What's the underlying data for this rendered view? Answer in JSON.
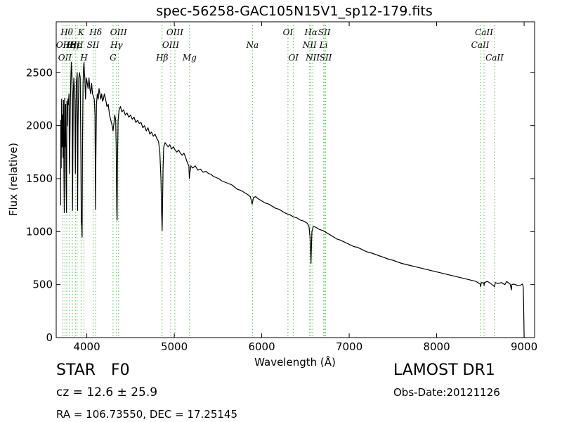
{
  "chart_data": {
    "type": "line",
    "title": "spec-56258-GAC105N15V1_sp12-179.fits",
    "xlabel": "Wavelength (Å)",
    "ylabel": "Flux (relative)",
    "xlim": [
      3650,
      9120
    ],
    "ylim": [
      0,
      2980
    ],
    "xticks": [
      4000,
      5000,
      6000,
      7000,
      8000,
      9000
    ],
    "yticks": [
      0,
      500,
      1000,
      1500,
      2000,
      2500
    ],
    "grid": false,
    "series": [
      {
        "color": "#000000",
        "points": [
          [
            3700,
            1250
          ],
          [
            3703,
            2050
          ],
          [
            3707,
            1600
          ],
          [
            3712,
            2250
          ],
          [
            3716,
            1800
          ],
          [
            3722,
            2100
          ],
          [
            3728,
            1700
          ],
          [
            3733,
            2240
          ],
          [
            3738,
            1550
          ],
          [
            3742,
            1180
          ],
          [
            3746,
            2260
          ],
          [
            3752,
            1800
          ],
          [
            3758,
            2200
          ],
          [
            3763,
            1450
          ],
          [
            3768,
            1180
          ],
          [
            3772,
            2230
          ],
          [
            3778,
            2000
          ],
          [
            3784,
            2250
          ],
          [
            3790,
            2200
          ],
          [
            3796,
            2300
          ],
          [
            3801,
            1550
          ],
          [
            3806,
            1800
          ],
          [
            3811,
            2150
          ],
          [
            3817,
            2450
          ],
          [
            3823,
            2600
          ],
          [
            3828,
            2500
          ],
          [
            3833,
            2300
          ],
          [
            3836,
            1200
          ],
          [
            3840,
            1700
          ],
          [
            3845,
            2300
          ],
          [
            3852,
            2450
          ],
          [
            3858,
            2350
          ],
          [
            3864,
            2250
          ],
          [
            3869,
            1550
          ],
          [
            3873,
            2000
          ],
          [
            3880,
            2400
          ],
          [
            3890,
            2500
          ],
          [
            3895,
            1200
          ],
          [
            3900,
            2000
          ],
          [
            3908,
            2450
          ],
          [
            3917,
            2500
          ],
          [
            3925,
            2450
          ],
          [
            3933,
            1650
          ],
          [
            3937,
            1100
          ],
          [
            3942,
            1050
          ],
          [
            3946,
            950
          ],
          [
            3950,
            1700
          ],
          [
            3957,
            2400
          ],
          [
            3963,
            2550
          ],
          [
            3968,
            2600
          ],
          [
            3972,
            2500
          ],
          [
            3978,
            2450
          ],
          [
            3985,
            2250
          ],
          [
            3995,
            2450
          ],
          [
            4005,
            2400
          ],
          [
            4015,
            2350
          ],
          [
            4025,
            2450
          ],
          [
            4035,
            2350
          ],
          [
            4045,
            2300
          ],
          [
            4055,
            2400
          ],
          [
            4065,
            2300
          ],
          [
            4075,
            2280
          ],
          [
            4085,
            2250
          ],
          [
            4093,
            2100
          ],
          [
            4097,
            1550
          ],
          [
            4100,
            1210
          ],
          [
            4104,
            1700
          ],
          [
            4110,
            2200
          ],
          [
            4120,
            2300
          ],
          [
            4130,
            2250
          ],
          [
            4140,
            2350
          ],
          [
            4150,
            2300
          ],
          [
            4160,
            2250
          ],
          [
            4170,
            2300
          ],
          [
            4180,
            2230
          ],
          [
            4190,
            2250
          ],
          [
            4200,
            2300
          ],
          [
            4215,
            2250
          ],
          [
            4230,
            2180
          ],
          [
            4245,
            2200
          ],
          [
            4260,
            2100
          ],
          [
            4275,
            2050
          ],
          [
            4290,
            2000
          ],
          [
            4300,
            1950
          ],
          [
            4310,
            2020
          ],
          [
            4320,
            2100
          ],
          [
            4330,
            2050
          ],
          [
            4336,
            1800
          ],
          [
            4340,
            1400
          ],
          [
            4343,
            1200
          ],
          [
            4346,
            1110
          ],
          [
            4350,
            1600
          ],
          [
            4358,
            2050
          ],
          [
            4370,
            2150
          ],
          [
            4385,
            2180
          ],
          [
            4400,
            2130
          ],
          [
            4420,
            2150
          ],
          [
            4440,
            2100
          ],
          [
            4460,
            2120
          ],
          [
            4480,
            2080
          ],
          [
            4500,
            2100
          ],
          [
            4520,
            2060
          ],
          [
            4540,
            2080
          ],
          [
            4560,
            2030
          ],
          [
            4580,
            2050
          ],
          [
            4600,
            2020
          ],
          [
            4620,
            2030
          ],
          [
            4640,
            1980
          ],
          [
            4660,
            2000
          ],
          [
            4680,
            1950
          ],
          [
            4700,
            1980
          ],
          [
            4720,
            1920
          ],
          [
            4740,
            1940
          ],
          [
            4760,
            1900
          ],
          [
            4780,
            1920
          ],
          [
            4800,
            1880
          ],
          [
            4820,
            1850
          ],
          [
            4835,
            1750
          ],
          [
            4848,
            1500
          ],
          [
            4855,
            1200
          ],
          [
            4861,
            1010
          ],
          [
            4866,
            1250
          ],
          [
            4872,
            1600
          ],
          [
            4880,
            1800
          ],
          [
            4895,
            1840
          ],
          [
            4910,
            1820
          ],
          [
            4930,
            1800
          ],
          [
            4950,
            1820
          ],
          [
            4970,
            1780
          ],
          [
            4990,
            1800
          ],
          [
            5010,
            1770
          ],
          [
            5030,
            1750
          ],
          [
            5050,
            1770
          ],
          [
            5070,
            1740
          ],
          [
            5090,
            1720
          ],
          [
            5110,
            1740
          ],
          [
            5130,
            1700
          ],
          [
            5150,
            1650
          ],
          [
            5167,
            1620
          ],
          [
            5172,
            1500
          ],
          [
            5178,
            1560
          ],
          [
            5184,
            1580
          ],
          [
            5190,
            1620
          ],
          [
            5210,
            1600
          ],
          [
            5240,
            1620
          ],
          [
            5270,
            1580
          ],
          [
            5300,
            1590
          ],
          [
            5330,
            1560
          ],
          [
            5360,
            1570
          ],
          [
            5390,
            1550
          ],
          [
            5420,
            1540
          ],
          [
            5450,
            1520
          ],
          [
            5480,
            1510
          ],
          [
            5510,
            1500
          ],
          [
            5540,
            1480
          ],
          [
            5570,
            1470
          ],
          [
            5600,
            1460
          ],
          [
            5630,
            1450
          ],
          [
            5660,
            1440
          ],
          [
            5690,
            1420
          ],
          [
            5720,
            1400
          ],
          [
            5760,
            1390
          ],
          [
            5800,
            1370
          ],
          [
            5840,
            1350
          ],
          [
            5870,
            1330
          ],
          [
            5890,
            1260
          ],
          [
            5896,
            1280
          ],
          [
            5905,
            1320
          ],
          [
            5930,
            1330
          ],
          [
            5960,
            1310
          ],
          [
            6000,
            1290
          ],
          [
            6040,
            1270
          ],
          [
            6080,
            1260
          ],
          [
            6120,
            1240
          ],
          [
            6160,
            1220
          ],
          [
            6200,
            1210
          ],
          [
            6240,
            1190
          ],
          [
            6280,
            1170
          ],
          [
            6320,
            1160
          ],
          [
            6360,
            1140
          ],
          [
            6400,
            1130
          ],
          [
            6440,
            1110
          ],
          [
            6480,
            1100
          ],
          [
            6520,
            1080
          ],
          [
            6540,
            1050
          ],
          [
            6552,
            950
          ],
          [
            6558,
            850
          ],
          [
            6563,
            700
          ],
          [
            6568,
            850
          ],
          [
            6574,
            1000
          ],
          [
            6590,
            1050
          ],
          [
            6620,
            1040
          ],
          [
            6660,
            1020
          ],
          [
            6700,
            1010
          ],
          [
            6740,
            990
          ],
          [
            6780,
            970
          ],
          [
            6820,
            950
          ],
          [
            6860,
            930
          ],
          [
            6900,
            920
          ],
          [
            6950,
            900
          ],
          [
            7000,
            880
          ],
          [
            7050,
            860
          ],
          [
            7100,
            850
          ],
          [
            7150,
            830
          ],
          [
            7200,
            810
          ],
          [
            7250,
            800
          ],
          [
            7300,
            785
          ],
          [
            7350,
            770
          ],
          [
            7400,
            755
          ],
          [
            7450,
            740
          ],
          [
            7500,
            730
          ],
          [
            7550,
            715
          ],
          [
            7600,
            700
          ],
          [
            7650,
            690
          ],
          [
            7700,
            680
          ],
          [
            7750,
            670
          ],
          [
            7800,
            660
          ],
          [
            7850,
            650
          ],
          [
            7900,
            640
          ],
          [
            7950,
            630
          ],
          [
            8000,
            620
          ],
          [
            8050,
            610
          ],
          [
            8100,
            600
          ],
          [
            8150,
            590
          ],
          [
            8200,
            580
          ],
          [
            8250,
            570
          ],
          [
            8300,
            560
          ],
          [
            8350,
            550
          ],
          [
            8400,
            540
          ],
          [
            8450,
            530
          ],
          [
            8498,
            505
          ],
          [
            8503,
            480
          ],
          [
            8510,
            520
          ],
          [
            8540,
            515
          ],
          [
            8542,
            490
          ],
          [
            8548,
            520
          ],
          [
            8580,
            530
          ],
          [
            8620,
            510
          ],
          [
            8662,
            480
          ],
          [
            8670,
            520
          ],
          [
            8700,
            510
          ],
          [
            8740,
            520
          ],
          [
            8780,
            500
          ],
          [
            8800,
            530
          ],
          [
            8840,
            505
          ],
          [
            8856,
            450
          ],
          [
            8860,
            500
          ],
          [
            8880,
            505
          ],
          [
            8900,
            500
          ],
          [
            8930,
            490
          ],
          [
            8960,
            495
          ],
          [
            8980,
            505
          ],
          [
            8990,
            480
          ],
          [
            8995,
            300
          ],
          [
            9000,
            0
          ],
          [
            9005,
            0
          ]
        ]
      }
    ],
    "lines": [
      {
        "x": 3727,
        "label": "OII",
        "row": 1
      },
      {
        "x": 3750,
        "label": "OII",
        "row": 2
      },
      {
        "x": 3771,
        "label": "Hθ",
        "row": 0
      },
      {
        "x": 3798,
        "label": "Hη",
        "row": 1
      },
      {
        "x": 3835,
        "label": "Hη",
        "row": 1
      },
      {
        "x": 3869,
        "label": "Hε",
        "row": 1
      },
      {
        "x": 3934,
        "label": "K",
        "row": 0
      },
      {
        "x": 3968,
        "label": "H",
        "row": 2
      },
      {
        "x": 3889,
        "label": "SII",
        "row": 1
      },
      {
        "x": 4072,
        "label": "SII",
        "row": 1
      },
      {
        "x": 4102,
        "label": "Hδ",
        "row": 0
      },
      {
        "x": 4300,
        "label": "G",
        "row": 2
      },
      {
        "x": 4340,
        "label": "Hγ",
        "row": 1
      },
      {
        "x": 4363,
        "label": "OIII",
        "row": 0
      },
      {
        "x": 4861,
        "label": "Hβ",
        "row": 2
      },
      {
        "x": 4959,
        "label": "OIII",
        "row": 1
      },
      {
        "x": 5007,
        "label": "OIII",
        "row": 0
      },
      {
        "x": 5175,
        "label": "Mg",
        "row": 2
      },
      {
        "x": 5894,
        "label": "Na",
        "row": 1
      },
      {
        "x": 6300,
        "label": "OI",
        "row": 0
      },
      {
        "x": 6363,
        "label": "OI",
        "row": 2
      },
      {
        "x": 6548,
        "label": "NII",
        "row": 1
      },
      {
        "x": 6563,
        "label": "Hα",
        "row": 0
      },
      {
        "x": 6583,
        "label": "NII",
        "row": 2
      },
      {
        "x": 6708,
        "label": "Li",
        "row": 1
      },
      {
        "x": 6716,
        "label": "SII",
        "row": 0
      },
      {
        "x": 6731,
        "label": "SII",
        "row": 2
      },
      {
        "x": 8498,
        "label": "CaII",
        "row": 1
      },
      {
        "x": 8542,
        "label": "CaII",
        "row": 0
      },
      {
        "x": 8662,
        "label": "CaII",
        "row": 2
      }
    ]
  },
  "info": {
    "object_class": "STAR",
    "subclass": "F0",
    "cz": "cz = 12.6  ± 25.9",
    "radec": "RA = 106.73550, DEC = 17.25145",
    "survey": "LAMOST DR1",
    "obs_date": "Obs-Date:20121126"
  },
  "colors": {
    "spectrum": "#000000",
    "line_markers": "#5cb85c"
  }
}
